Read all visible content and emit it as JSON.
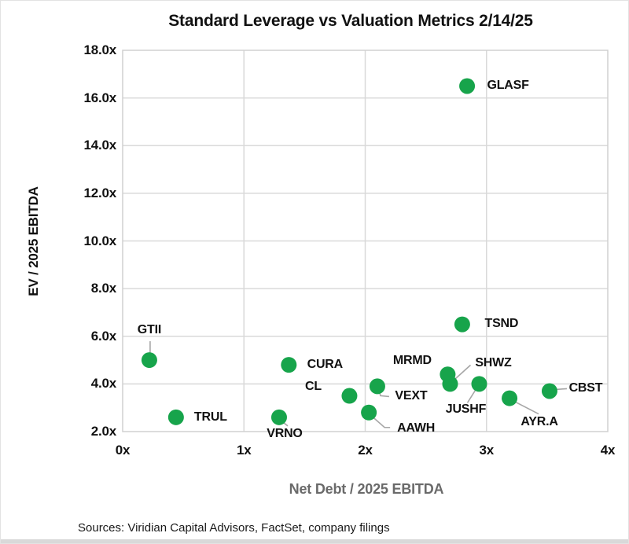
{
  "title": "Standard Leverage vs Valuation Metrics 2/14/25",
  "source_note": "Sources: Viridian Capital Advisors, FactSet, company filings",
  "colors": {
    "point": "#17A44B",
    "grid": "#D9D9D9",
    "plot_border": "#D0D0D0",
    "leader": "#A6A6A6",
    "x_axis_title": "#6A6A6A",
    "y_axis_title": "#111111",
    "tick_text": "#111111"
  },
  "chart_data": {
    "type": "scatter",
    "title": "Standard Leverage vs Valuation Metrics 2/14/25",
    "xlabel": "Net Debt / 2025 EBITDA",
    "ylabel": "EV / 2025 EBITDA",
    "xlim": [
      0,
      4
    ],
    "ylim": [
      2,
      18
    ],
    "grid": true,
    "legend": "none",
    "x_ticks": [
      {
        "value": 0,
        "label": "0x"
      },
      {
        "value": 1,
        "label": "1x"
      },
      {
        "value": 2,
        "label": "2x"
      },
      {
        "value": 3,
        "label": "3x"
      },
      {
        "value": 4,
        "label": "4x"
      }
    ],
    "y_ticks": [
      {
        "value": 2,
        "label": "2.0x"
      },
      {
        "value": 4,
        "label": "4.0x"
      },
      {
        "value": 6,
        "label": "6.0x"
      },
      {
        "value": 8,
        "label": "8.0x"
      },
      {
        "value": 10,
        "label": "10.0x"
      },
      {
        "value": 12,
        "label": "12.0x"
      },
      {
        "value": 14,
        "label": "14.0x"
      },
      {
        "value": 16,
        "label": "16.0x"
      },
      {
        "value": 18,
        "label": "18.0x"
      }
    ],
    "points": [
      {
        "ticker": "GLASF",
        "x": 2.84,
        "y": 16.5,
        "label_offset": [
          52,
          0
        ],
        "leader": null
      },
      {
        "ticker": "TSND",
        "x": 2.8,
        "y": 6.5,
        "label_offset": [
          50,
          -1
        ],
        "leader": null
      },
      {
        "ticker": "GTII",
        "x": 0.22,
        "y": 5.0,
        "label_offset": [
          0,
          -38
        ],
        "leader": [
          [
            1,
            -24
          ],
          [
            1,
            -6
          ]
        ]
      },
      {
        "ticker": "CURA",
        "x": 1.37,
        "y": 4.8,
        "label_offset": [
          46,
          0
        ],
        "leader": null
      },
      {
        "ticker": "MRMD",
        "x": 2.68,
        "y": 4.4,
        "label_offset": [
          -45,
          -17
        ],
        "leader": null
      },
      {
        "ticker": "SHWZ",
        "x": 2.7,
        "y": 4.0,
        "label_offset": [
          55,
          -26
        ],
        "leader": [
          [
            5,
            -5
          ],
          [
            26,
            -24
          ]
        ]
      },
      {
        "ticker": "JUSHF",
        "x": 2.94,
        "y": 4.0,
        "label_offset": [
          -17,
          33
        ],
        "leader": [
          [
            -3,
            5
          ],
          [
            -15,
            24
          ]
        ]
      },
      {
        "ticker": "VEXT",
        "x": 2.1,
        "y": 3.9,
        "label_offset": [
          43,
          13
        ],
        "leader": [
          [
            2,
            5
          ],
          [
            4,
            12
          ],
          [
            15,
            13
          ]
        ]
      },
      {
        "ticker": "CBST",
        "x": 3.52,
        "y": 3.7,
        "label_offset": [
          46,
          -3
        ],
        "leader": [
          [
            8,
            -2
          ],
          [
            22,
            -3
          ]
        ]
      },
      {
        "ticker": "CL",
        "x": 1.87,
        "y": 3.5,
        "label_offset": [
          -46,
          -12
        ],
        "leader": null
      },
      {
        "ticker": "AYR.A",
        "x": 3.19,
        "y": 3.4,
        "label_offset": [
          38,
          30
        ],
        "leader": [
          [
            4,
            3
          ],
          [
            37,
            20
          ]
        ]
      },
      {
        "ticker": "AAWH",
        "x": 2.03,
        "y": 2.8,
        "label_offset": [
          60,
          20
        ],
        "leader": [
          [
            3,
            4
          ],
          [
            20,
            19
          ],
          [
            27,
            19
          ]
        ]
      },
      {
        "ticker": "TRUL",
        "x": 0.44,
        "y": 2.6,
        "label_offset": [
          44,
          0
        ],
        "leader": null
      },
      {
        "ticker": "VRNO",
        "x": 1.29,
        "y": 2.6,
        "label_offset": [
          7,
          21
        ],
        "leader": [
          [
            2,
            4
          ],
          [
            11,
            11
          ]
        ]
      }
    ]
  }
}
